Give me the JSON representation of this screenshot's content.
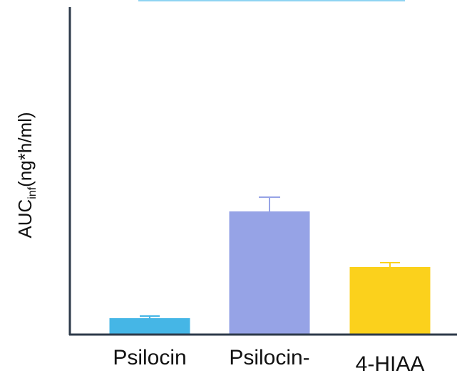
{
  "chart_data": {
    "type": "bar",
    "categories": [
      "Psilocin",
      "Psilocin-",
      "4-HIAA"
    ],
    "values": [
      22,
      172,
      94
    ],
    "errors": [
      3,
      20,
      6
    ],
    "colors": [
      "#45B6E6",
      "#96A3E6",
      "#FBD11C"
    ],
    "ylabel": {
      "main": "AUC",
      "sub": "inf",
      "rest": "(ng*h/ml)"
    },
    "xlabel": "",
    "ylim": [
      0,
      420
    ],
    "axis_color": "#2D3A4A",
    "grid": false
  }
}
